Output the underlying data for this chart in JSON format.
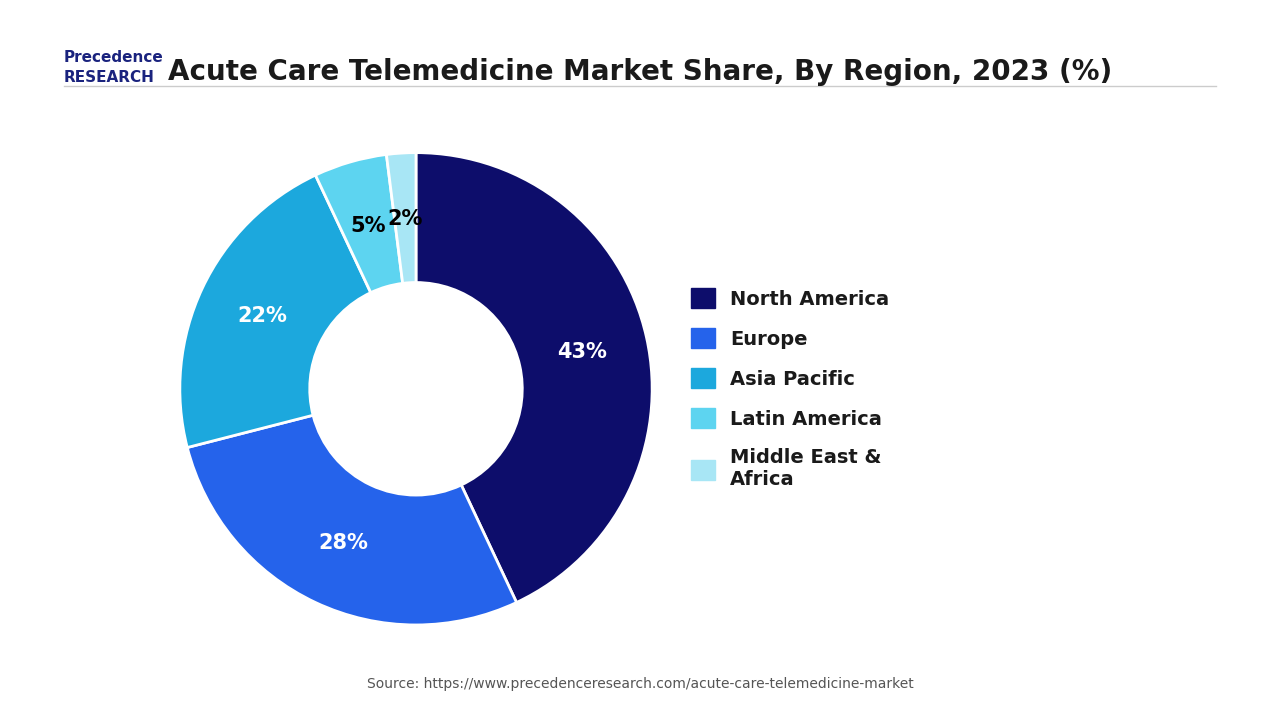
{
  "title": "Acute Care Telemedicine Market Share, By Region, 2023 (%)",
  "labels": [
    "North America",
    "Europe",
    "Asia Pacific",
    "Latin America",
    "Middle East &\nAfrica"
  ],
  "values": [
    43,
    28,
    22,
    5,
    2
  ],
  "colors": [
    "#0d0d6b",
    "#2563eb",
    "#1ca8dd",
    "#5dd4f0",
    "#a8e6f5"
  ],
  "label_colors": [
    "white",
    "white",
    "white",
    "black",
    "black"
  ],
  "source": "Source: https://www.precedenceresearch.com/acute-care-telemedicine-market",
  "background_color": "#ffffff",
  "title_fontsize": 20,
  "label_fontsize": 15,
  "legend_fontsize": 14
}
